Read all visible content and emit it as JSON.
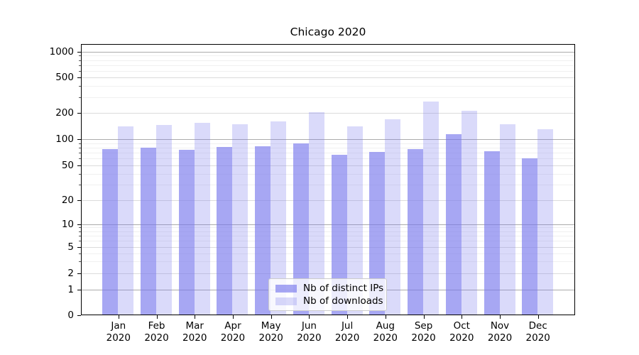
{
  "figure": {
    "background": "#ffffff",
    "axis_color": "#000000",
    "grid_major_color": "#ababab",
    "grid_mid_color": "#dbdbdb",
    "grid_minor_color": "#f0f0f0"
  },
  "chart_data": {
    "type": "bar",
    "title": "Chicago 2020",
    "categories": [
      "Jan 2020",
      "Feb 2020",
      "Mar 2020",
      "Apr 2020",
      "May 2020",
      "Jun 2020",
      "Jul 2020",
      "Aug 2020",
      "Sep 2020",
      "Oct 2020",
      "Nov 2020",
      "Dec 2020"
    ],
    "series": [
      {
        "name": "Nb of distinct IPs",
        "color": "rgba(122,122,237,0.66)",
        "color_hex_rendered": "#a6a6f1",
        "values": [
          77,
          80,
          75,
          82,
          83,
          90,
          66,
          71,
          77,
          113,
          73,
          60
        ]
      },
      {
        "name": "Nb of downloads",
        "color": "rgba(122,122,237,0.28)",
        "color_hex_rendered": "#dadaf9",
        "values": [
          140,
          145,
          153,
          149,
          160,
          203,
          140,
          170,
          268,
          210,
          149,
          131
        ]
      }
    ],
    "xlabel": "",
    "ylabel": "",
    "y_axis": {
      "scale": "symlog",
      "tick_labels": [
        "0",
        "1",
        "2",
        "5",
        "10",
        "20",
        "50",
        "100",
        "200",
        "500",
        "1000"
      ],
      "tick_values": [
        0,
        1,
        2,
        5,
        10,
        20,
        50,
        100,
        200,
        500,
        1000
      ],
      "range": [
        0,
        1400
      ],
      "grid": true
    },
    "legend": {
      "position": "bottom-center",
      "entries": [
        "Nb of distinct IPs",
        "Nb of downloads"
      ]
    }
  }
}
